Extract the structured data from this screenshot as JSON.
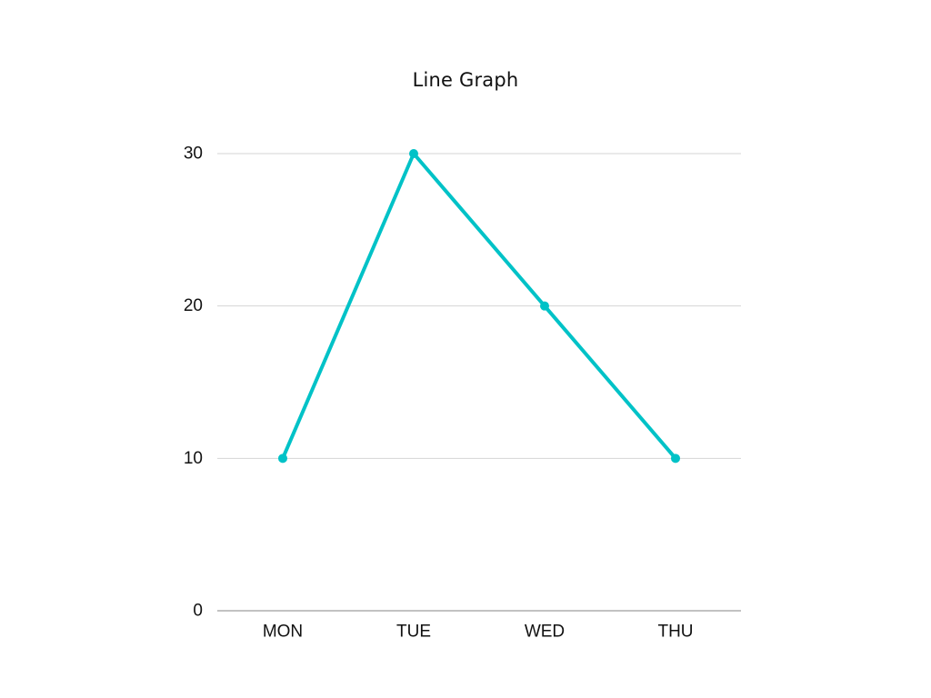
{
  "chart_data": {
    "type": "line",
    "title": "Line Graph",
    "categories": [
      "MON",
      "TUE",
      "WED",
      "THU"
    ],
    "series": [
      {
        "values": [
          10,
          30,
          20,
          10
        ],
        "color": "#00c2c7"
      }
    ],
    "y_ticks": [
      "0",
      "10",
      "20",
      "30"
    ],
    "ylim": [
      0,
      30
    ],
    "grid": true,
    "legend": "none",
    "xlabel": "",
    "ylabel": ""
  }
}
